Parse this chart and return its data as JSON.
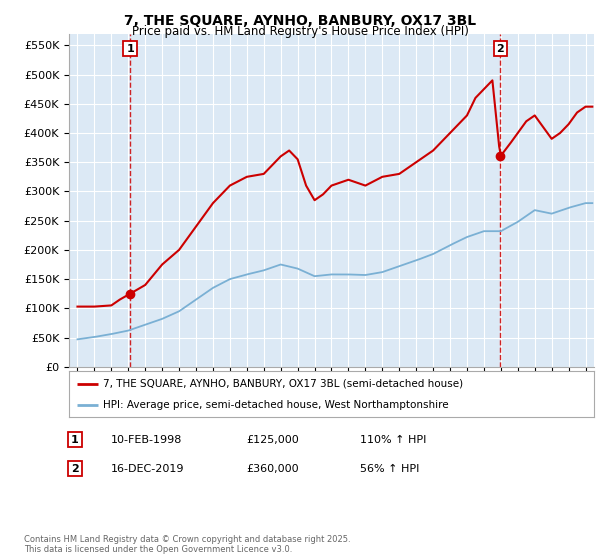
{
  "title": "7, THE SQUARE, AYNHO, BANBURY, OX17 3BL",
  "subtitle": "Price paid vs. HM Land Registry's House Price Index (HPI)",
  "background_color": "#dce9f5",
  "plot_bg_color": "#dce9f5",
  "red_line_color": "#cc0000",
  "blue_line_color": "#7ab0d4",
  "sale1_date": 1998.11,
  "sale1_price": 125000,
  "sale1_label": "1",
  "sale2_date": 2019.96,
  "sale2_price": 360000,
  "sale2_label": "2",
  "legend_entry1": "7, THE SQUARE, AYNHO, BANBURY, OX17 3BL (semi-detached house)",
  "legend_entry2": "HPI: Average price, semi-detached house, West Northamptonshire",
  "table_row1": [
    "1",
    "10-FEB-1998",
    "£125,000",
    "110% ↑ HPI"
  ],
  "table_row2": [
    "2",
    "16-DEC-2019",
    "£360,000",
    "56% ↑ HPI"
  ],
  "footer": "Contains HM Land Registry data © Crown copyright and database right 2025.\nThis data is licensed under the Open Government Licence v3.0.",
  "ylim": [
    0,
    570000
  ],
  "xlim_start": 1994.5,
  "xlim_end": 2025.5,
  "hpi_nodes_t": [
    1995,
    1996,
    1997,
    1998,
    1999,
    2000,
    2001,
    2002,
    2003,
    2004,
    2005,
    2006,
    2007,
    2008,
    2009,
    2010,
    2011,
    2012,
    2013,
    2014,
    2015,
    2016,
    2017,
    2018,
    2019,
    2020,
    2021,
    2022,
    2023,
    2024,
    2025
  ],
  "hpi_nodes_v": [
    47000,
    51000,
    56000,
    62000,
    72000,
    82000,
    95000,
    115000,
    135000,
    150000,
    158000,
    165000,
    175000,
    168000,
    155000,
    158000,
    158000,
    157000,
    162000,
    172000,
    182000,
    193000,
    208000,
    222000,
    232000,
    232000,
    248000,
    268000,
    262000,
    272000,
    280000
  ],
  "red_nodes_t": [
    1995,
    1996,
    1997,
    1997.5,
    1998.11,
    1999,
    2000,
    2001,
    2002,
    2003,
    2004,
    2005,
    2006,
    2007,
    2007.5,
    2008,
    2008.5,
    2009,
    2009.5,
    2010,
    2011,
    2012,
    2013,
    2014,
    2015,
    2016,
    2017,
    2018,
    2018.5,
    2019,
    2019.5,
    2019.96,
    2020.1,
    2020.5,
    2021,
    2021.5,
    2022,
    2022.5,
    2023,
    2023.5,
    2024,
    2024.5,
    2025
  ],
  "red_nodes_v": [
    103000,
    103000,
    105000,
    115000,
    125000,
    140000,
    175000,
    200000,
    240000,
    280000,
    310000,
    325000,
    330000,
    360000,
    370000,
    355000,
    310000,
    285000,
    295000,
    310000,
    320000,
    310000,
    325000,
    330000,
    350000,
    370000,
    400000,
    430000,
    460000,
    475000,
    490000,
    360000,
    365000,
    380000,
    400000,
    420000,
    430000,
    410000,
    390000,
    400000,
    415000,
    435000,
    445000
  ]
}
